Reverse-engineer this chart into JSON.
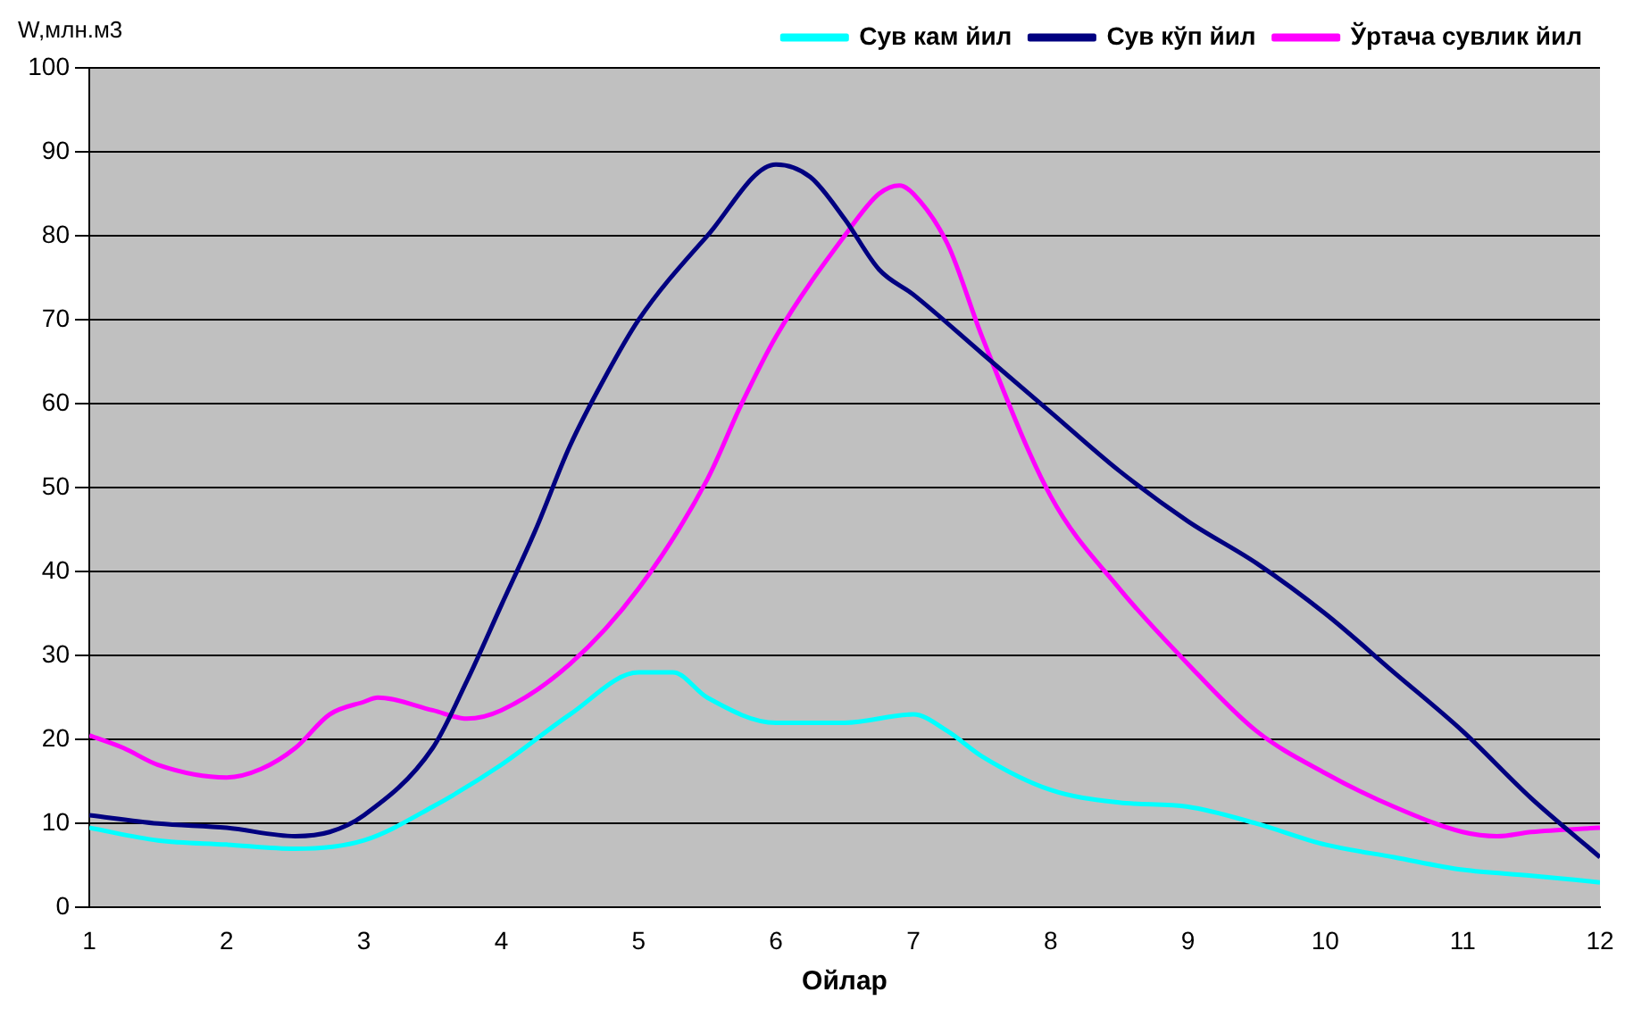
{
  "chart_data": {
    "type": "line",
    "xlabel": "Ойлар",
    "ylabel": "W,млн.м3",
    "xlim": [
      1,
      12
    ],
    "xticks": [
      1,
      2,
      3,
      4,
      5,
      6,
      7,
      8,
      9,
      10,
      11,
      12
    ],
    "ylim": [
      0,
      100
    ],
    "yticks": [
      0,
      10,
      20,
      30,
      40,
      50,
      60,
      70,
      80,
      90,
      100
    ],
    "grid": "y",
    "legend": "top right",
    "marker": "none",
    "line_style": "solid",
    "series": [
      {
        "name": "Сув кам йил",
        "color": "#00ffff",
        "x": [
          1,
          1.5,
          2,
          2.5,
          3,
          3.5,
          4,
          4.5,
          5,
          5.25,
          5.5,
          6,
          6.5,
          7,
          7.25,
          7.5,
          8,
          8.5,
          9,
          9.5,
          10,
          10.5,
          11,
          11.5,
          12
        ],
        "values": [
          9.5,
          8,
          7.5,
          7,
          8,
          12,
          17,
          23,
          28,
          28,
          25,
          22,
          22,
          23,
          21,
          18,
          14,
          12.5,
          12,
          10,
          7.5,
          6,
          4.5,
          3.8,
          3
        ]
      },
      {
        "name": "Сув кўп йил",
        "color": "#000080",
        "x": [
          1,
          1.5,
          2,
          2.5,
          2.75,
          3,
          3.5,
          3.75,
          4,
          4.25,
          4.5,
          4.75,
          5,
          5.5,
          6,
          6.25,
          6.5,
          6.75,
          7,
          7.5,
          8,
          8.5,
          9,
          9.5,
          10,
          10.5,
          11,
          11.5,
          12
        ],
        "values": [
          11,
          10,
          9.5,
          8.5,
          9,
          11,
          19,
          27,
          36,
          45,
          55,
          63,
          70,
          80,
          88.5,
          87,
          82,
          76,
          73,
          66,
          59,
          52,
          46,
          41,
          35,
          28,
          21,
          13,
          6
        ]
      },
      {
        "name": "Ўртача сувлик йил",
        "color": "#ff00ff",
        "x": [
          1,
          1.25,
          1.5,
          2,
          2.25,
          2.5,
          2.75,
          3,
          3.1,
          3.5,
          3.75,
          4,
          4.5,
          5,
          5.5,
          5.75,
          6,
          6.5,
          6.75,
          6.9,
          7,
          7.25,
          7.5,
          8,
          8.5,
          9,
          9.5,
          10,
          10.5,
          11,
          11.25,
          11.5,
          12
        ],
        "values": [
          20.5,
          19,
          17,
          15.5,
          16.5,
          19,
          23,
          24.5,
          25,
          23.5,
          22.5,
          23.5,
          29,
          38,
          51,
          60,
          68,
          80,
          85,
          86,
          85,
          79,
          68,
          49,
          38,
          29,
          21,
          16,
          12,
          9,
          8.5,
          9,
          9.5
        ]
      }
    ]
  }
}
